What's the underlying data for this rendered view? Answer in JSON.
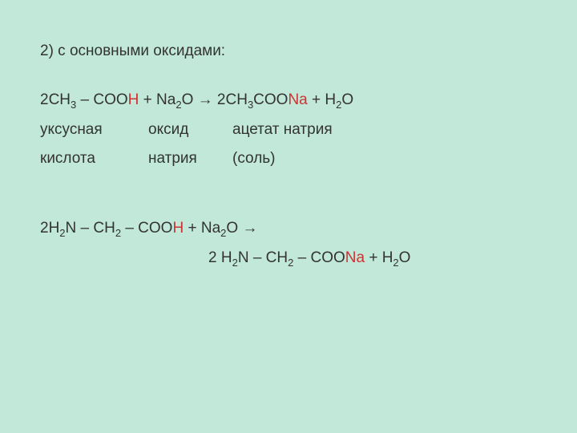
{
  "colors": {
    "background": "#c1e8d9",
    "text": "#333333",
    "highlight": "#cc3333"
  },
  "fontsize": 19,
  "subfontsize": 13,
  "content": {
    "title": "2) с основными оксидами:",
    "eq1": {
      "pre1": "2CH",
      "s1": "3",
      "pre2": " – COO",
      "h": "H",
      "pre3": " + Na",
      "s2": "2",
      "pre4": "O → 2CH",
      "s3": "3",
      "pre5": "COO",
      "na": "Na",
      "pre6": " + H",
      "s4": "2",
      "pre7": "O"
    },
    "labels1": {
      "r1c1": "уксусная",
      "r1c2": "оксид",
      "r1c3": "ацетат натрия",
      "r2c1": "кислота",
      "r2c2": "натрия",
      "r2c3": "(соль)"
    },
    "eq2": {
      "pre1": "2H",
      "s1": "2",
      "pre2": "N – CH",
      "s2": "2",
      "pre3": " – COO",
      "h": "H",
      "pre4": " + Na",
      "s3": "2",
      "pre5": "O →"
    },
    "eq3": {
      "pre1": "2 H",
      "s1": "2",
      "pre2": "N – CH",
      "s2": "2",
      "pre3": " – COO",
      "na": "Na",
      "pre4": " + H",
      "s3": "2",
      "pre5": "O"
    }
  }
}
